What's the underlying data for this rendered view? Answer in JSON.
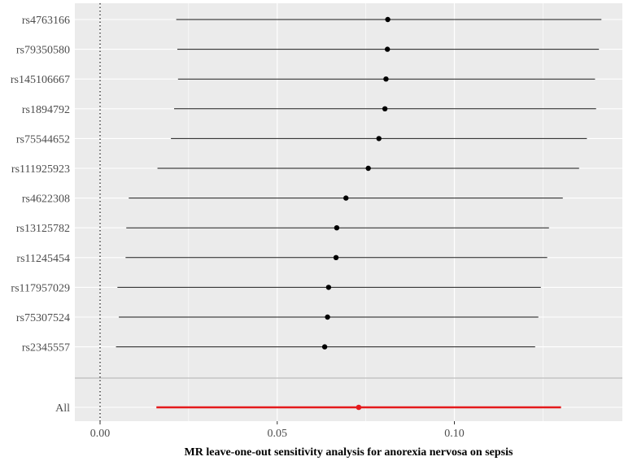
{
  "chart_data": {
    "type": "forest",
    "title": "",
    "xlabel": "MR leave-one-out sensitivity analysis for anorexia nervosa on sepsis",
    "ylabel": "",
    "xlim": [
      -0.008,
      0.148
    ],
    "x_ticks": [
      0.0,
      0.05,
      0.1
    ],
    "x_tick_labels": [
      "0.00",
      "0.05",
      "0.10"
    ],
    "reference_line_x": 0.0,
    "grid": true,
    "snps": [
      {
        "label": "rs4763166",
        "estimate": 0.0812,
        "lower": 0.0215,
        "upper": 0.1415
      },
      {
        "label": "rs79350580",
        "estimate": 0.0811,
        "lower": 0.0218,
        "upper": 0.1408
      },
      {
        "label": "rs145106667",
        "estimate": 0.0807,
        "lower": 0.022,
        "upper": 0.1397
      },
      {
        "label": "rs1894792",
        "estimate": 0.0804,
        "lower": 0.0209,
        "upper": 0.14
      },
      {
        "label": "rs75544652",
        "estimate": 0.0787,
        "lower": 0.02,
        "upper": 0.1374
      },
      {
        "label": "rs111925923",
        "estimate": 0.0757,
        "lower": 0.0162,
        "upper": 0.1352
      },
      {
        "label": "rs4622308",
        "estimate": 0.0694,
        "lower": 0.0081,
        "upper": 0.1306
      },
      {
        "label": "rs13125782",
        "estimate": 0.0668,
        "lower": 0.0074,
        "upper": 0.1267
      },
      {
        "label": "rs11245454",
        "estimate": 0.0666,
        "lower": 0.0072,
        "upper": 0.1262
      },
      {
        "label": "rs117957029",
        "estimate": 0.0645,
        "lower": 0.0049,
        "upper": 0.1244
      },
      {
        "label": "rs75307524",
        "estimate": 0.0642,
        "lower": 0.0053,
        "upper": 0.1237
      },
      {
        "label": "rs2345557",
        "estimate": 0.0634,
        "lower": 0.0045,
        "upper": 0.1228
      }
    ],
    "overall": {
      "label": "All",
      "estimate": 0.073,
      "lower": 0.0159,
      "upper": 0.1301,
      "color": "#e41a1c"
    },
    "colors": {
      "panel": "#ebebeb",
      "grid": "#ffffff",
      "point": "#000000",
      "separator": "#bdbdbd"
    }
  }
}
